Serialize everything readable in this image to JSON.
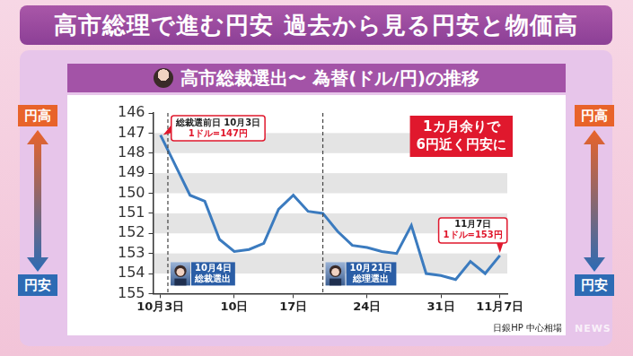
{
  "header": "高市総理で進む円安 過去から見る円安と物価高",
  "chart_data": {
    "type": "line",
    "title": "高市総裁選出〜 為替(ドル/円)の推移",
    "categories": [
      "10月3日",
      null,
      null,
      null,
      null,
      "10日",
      null,
      null,
      null,
      "17日",
      null,
      null,
      null,
      null,
      "24日",
      null,
      null,
      null,
      null,
      "31日",
      null,
      null,
      null,
      "11月7日"
    ],
    "values": [
      147.1,
      148.6,
      150.1,
      150.4,
      152.3,
      152.9,
      152.8,
      152.5,
      150.8,
      150.1,
      150.9,
      151.0,
      151.9,
      152.6,
      152.7,
      152.9,
      153.0,
      151.6,
      154.0,
      154.1,
      154.3,
      153.4,
      154.0,
      153.1
    ],
    "color": "#3b7bbf",
    "marker": "none",
    "ylim": [
      155,
      146
    ],
    "yticks": [
      146,
      147,
      148,
      149,
      150,
      151,
      152,
      153,
      154,
      155
    ],
    "grid": true,
    "axis_direction": {
      "up": "円高",
      "down": "円安"
    },
    "callouts": [
      {
        "x": 0,
        "lines": [
          "総裁選前日 10月3日",
          "1ドル=147円"
        ]
      },
      {
        "x": 23,
        "lines": [
          "11月7日",
          "1ドル=153円"
        ]
      }
    ],
    "events": [
      {
        "x": 0.5,
        "lines": [
          "10月4日",
          "総裁選出"
        ]
      },
      {
        "x": 11,
        "lines": [
          "10月21日",
          "総理選出"
        ]
      }
    ],
    "note": [
      "1カ月余りで",
      "6円近く円安に"
    ],
    "source": "日銀HP 中心相場"
  },
  "logo": "NEWS"
}
